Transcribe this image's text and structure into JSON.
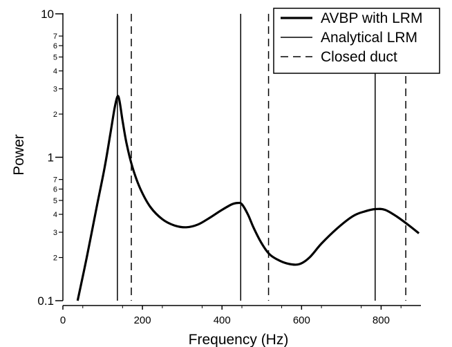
{
  "chart_data": {
    "type": "line",
    "xlabel": "Frequency (Hz)",
    "ylabel": "Power",
    "xlim": [
      0,
      900
    ],
    "ylim": [
      0.1,
      10
    ],
    "yscale": "log",
    "grid": false,
    "legend_position": "top-right",
    "x_ticks": [
      {
        "value": 0,
        "label": "0"
      },
      {
        "value": 200,
        "label": "200"
      },
      {
        "value": 400,
        "label": "400"
      },
      {
        "value": 600,
        "label": "600"
      },
      {
        "value": 800,
        "label": "800"
      }
    ],
    "y_major_ticks": [
      {
        "value": 0.1,
        "label": "0.1"
      },
      {
        "value": 1,
        "label": "1"
      },
      {
        "value": 10,
        "label": "10"
      }
    ],
    "y_minor_ticks": [
      {
        "value": 0.2,
        "label": "2"
      },
      {
        "value": 0.3,
        "label": "3"
      },
      {
        "value": 0.4,
        "label": "4"
      },
      {
        "value": 0.5,
        "label": "5"
      },
      {
        "value": 0.6,
        "label": "6"
      },
      {
        "value": 0.7,
        "label": "7"
      },
      {
        "value": 2,
        "label": "2"
      },
      {
        "value": 3,
        "label": "3"
      },
      {
        "value": 4,
        "label": "4"
      },
      {
        "value": 5,
        "label": "5"
      },
      {
        "value": 6,
        "label": "6"
      },
      {
        "value": 7,
        "label": "7"
      }
    ],
    "series": [
      {
        "name": "AVBP with LRM",
        "style": "thick-solid",
        "color": "#000000",
        "points": [
          [
            37,
            0.1
          ],
          [
            60,
            0.2
          ],
          [
            85,
            0.45
          ],
          [
            105,
            0.85
          ],
          [
            120,
            1.5
          ],
          [
            130,
            2.2
          ],
          [
            137,
            2.65
          ],
          [
            142,
            2.5
          ],
          [
            150,
            1.8
          ],
          [
            160,
            1.25
          ],
          [
            175,
            0.85
          ],
          [
            195,
            0.6
          ],
          [
            220,
            0.45
          ],
          [
            250,
            0.37
          ],
          [
            280,
            0.335
          ],
          [
            310,
            0.325
          ],
          [
            340,
            0.34
          ],
          [
            370,
            0.38
          ],
          [
            400,
            0.43
          ],
          [
            425,
            0.47
          ],
          [
            440,
            0.48
          ],
          [
            450,
            0.47
          ],
          [
            465,
            0.4
          ],
          [
            480,
            0.32
          ],
          [
            500,
            0.25
          ],
          [
            520,
            0.21
          ],
          [
            545,
            0.19
          ],
          [
            570,
            0.18
          ],
          [
            595,
            0.18
          ],
          [
            620,
            0.2
          ],
          [
            650,
            0.25
          ],
          [
            690,
            0.32
          ],
          [
            730,
            0.39
          ],
          [
            760,
            0.42
          ],
          [
            785,
            0.435
          ],
          [
            810,
            0.43
          ],
          [
            840,
            0.385
          ],
          [
            870,
            0.335
          ],
          [
            895,
            0.295
          ]
        ]
      },
      {
        "name": "Analytical LRM",
        "style": "thin-solid-vertical",
        "color": "#000000",
        "x": [
          137,
          447,
          785
        ]
      },
      {
        "name": "Closed duct",
        "style": "dashed-vertical",
        "color": "#000000",
        "x": [
          172,
          517,
          862
        ]
      }
    ]
  }
}
